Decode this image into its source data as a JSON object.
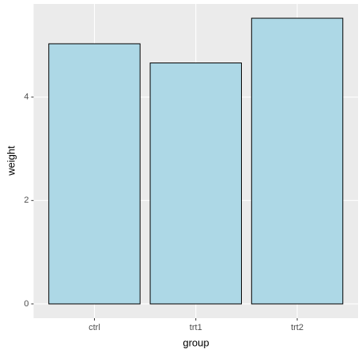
{
  "chart_data": {
    "type": "bar",
    "x_label": "group",
    "y_label": "weight",
    "categories": [
      "ctrl",
      "trt1",
      "trt2"
    ],
    "values": [
      5.032,
      4.661,
      5.526
    ],
    "color": "#add8e6",
    "ylim": [
      -0.276,
      5.802
    ],
    "yticks": [
      0,
      2,
      4
    ],
    "grid": true
  }
}
